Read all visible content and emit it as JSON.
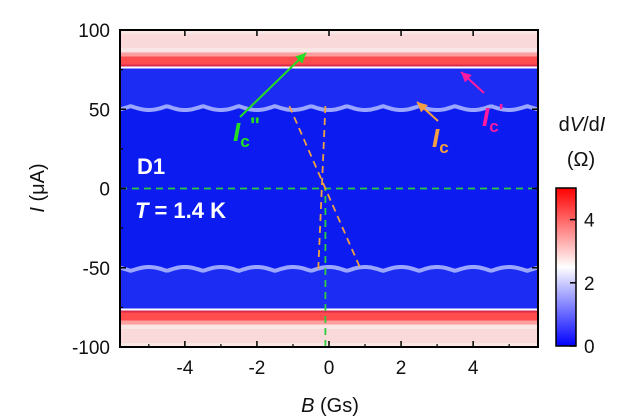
{
  "chart_data": {
    "type": "heatmap",
    "title": "",
    "xlabel": "B (Gs)",
    "ylabel": "I (μA)",
    "xlim": [
      -5.8,
      5.8
    ],
    "ylim": [
      -100,
      100
    ],
    "x_ticks": [
      -4,
      -2,
      0,
      2,
      4
    ],
    "y_ticks": [
      -100,
      -50,
      0,
      50,
      100
    ],
    "x_tick_labels": [
      "-4",
      "-2",
      "0",
      "2",
      "4"
    ],
    "y_tick_labels": [
      "-100",
      "-50",
      "0",
      "50",
      "100"
    ],
    "colorbar": {
      "label": "dV/dI",
      "unit": "(Ω)",
      "range": [
        0,
        5
      ],
      "ticks": [
        0,
        2,
        4
      ],
      "tick_labels": [
        "0",
        "2",
        "4"
      ],
      "colors": [
        "#0000ff",
        "#ffffff",
        "#ff0000"
      ]
    },
    "features": {
      "switching_current_uA": 52,
      "retrapping_current_uA": 77,
      "modulation_period_Gs": 1.0,
      "modulation_amplitude_uA": 2.5
    },
    "annotations": {
      "device": "D1",
      "temperature_prefix": "T",
      "temperature_value": "= 1.4 K",
      "ic_main": "I",
      "ic_sub": "c",
      "ic_prime_main": "I",
      "ic_prime_sub": "c",
      "ic_prime_mark": "'",
      "ic_dprime_main": "I",
      "ic_dprime_sub": "c",
      "ic_dprime_mark": "\""
    },
    "guide_lines": {
      "horizontal_zero": {
        "y": 0,
        "color": "#2ecc40"
      },
      "vertical_zero": {
        "x": -0.1,
        "y_range": [
          -100,
          0
        ],
        "color": "#2ecc40"
      },
      "orange_1": {
        "x1": -1.1,
        "y1": 52,
        "x2": 0.9,
        "y2": -52,
        "color": "#f0a040"
      },
      "orange_2": {
        "x1": -0.1,
        "y1": 52,
        "x2": -0.3,
        "y2": -52,
        "color": "#f0a040"
      }
    }
  }
}
